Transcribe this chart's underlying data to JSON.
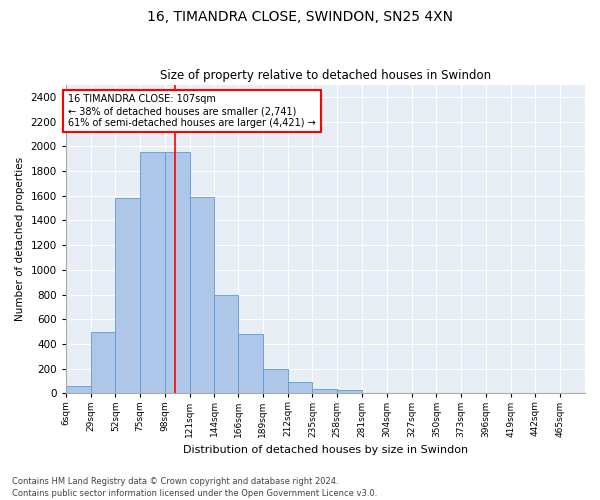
{
  "title": "16, TIMANDRA CLOSE, SWINDON, SN25 4XN",
  "subtitle": "Size of property relative to detached houses in Swindon",
  "xlabel": "Distribution of detached houses by size in Swindon",
  "ylabel": "Number of detached properties",
  "bar_color": "#aec6e8",
  "bar_edge_color": "#5b9bd5",
  "background_color": "#e8eef5",
  "grid_color": "#ffffff",
  "values": [
    60,
    500,
    1580,
    1950,
    1950,
    1590,
    800,
    480,
    195,
    90,
    35,
    25,
    0,
    0,
    0,
    0,
    0,
    0,
    0,
    0
  ],
  "ylim": [
    0,
    2500
  ],
  "yticks": [
    0,
    200,
    400,
    600,
    800,
    1000,
    1200,
    1400,
    1600,
    1800,
    2000,
    2200,
    2400
  ],
  "property_line_x": 107,
  "annotation_title": "16 TIMANDRA CLOSE: 107sqm",
  "annotation_line1": "← 38% of detached houses are smaller (2,741)",
  "annotation_line2": "61% of semi-detached houses are larger (4,421) →",
  "footer1": "Contains HM Land Registry data © Crown copyright and database right 2024.",
  "footer2": "Contains public sector information licensed under the Open Government Licence v3.0.",
  "bin_edges": [
    6,
    29,
    52,
    75,
    98,
    121,
    144,
    166,
    189,
    212,
    235,
    258,
    281,
    304,
    327,
    350,
    373,
    396,
    419,
    442,
    465
  ]
}
